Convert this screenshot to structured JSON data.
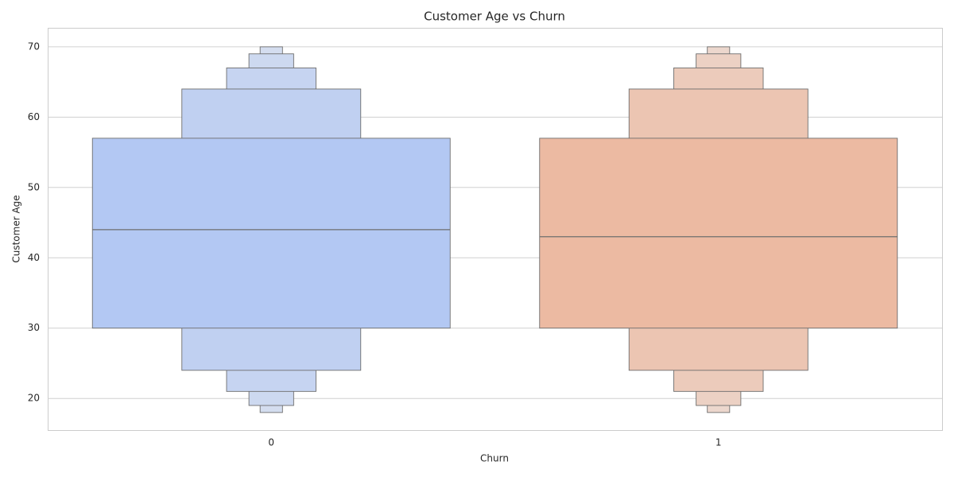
{
  "chart_data": {
    "type": "boxen",
    "title": "Customer Age vs Churn",
    "x_label": "Churn",
    "y_label": "Customer Age",
    "categories": [
      "0",
      "1"
    ],
    "boxes": [
      {
        "median": 44,
        "levels": [
          [
            30,
            57
          ],
          [
            24,
            64
          ],
          [
            21,
            67
          ],
          [
            19,
            69
          ],
          [
            18,
            70
          ]
        ],
        "color": "#b3c8f3"
      },
      {
        "median": 43,
        "levels": [
          [
            30,
            57
          ],
          [
            24,
            64
          ],
          [
            21,
            67
          ],
          [
            19,
            69
          ],
          [
            18,
            70
          ]
        ],
        "color": "#ecbaa2"
      }
    ],
    "ylim": [
      15.5,
      72.7
    ],
    "yticks": [
      20,
      30,
      40,
      50,
      60,
      70
    ],
    "grid": true
  }
}
